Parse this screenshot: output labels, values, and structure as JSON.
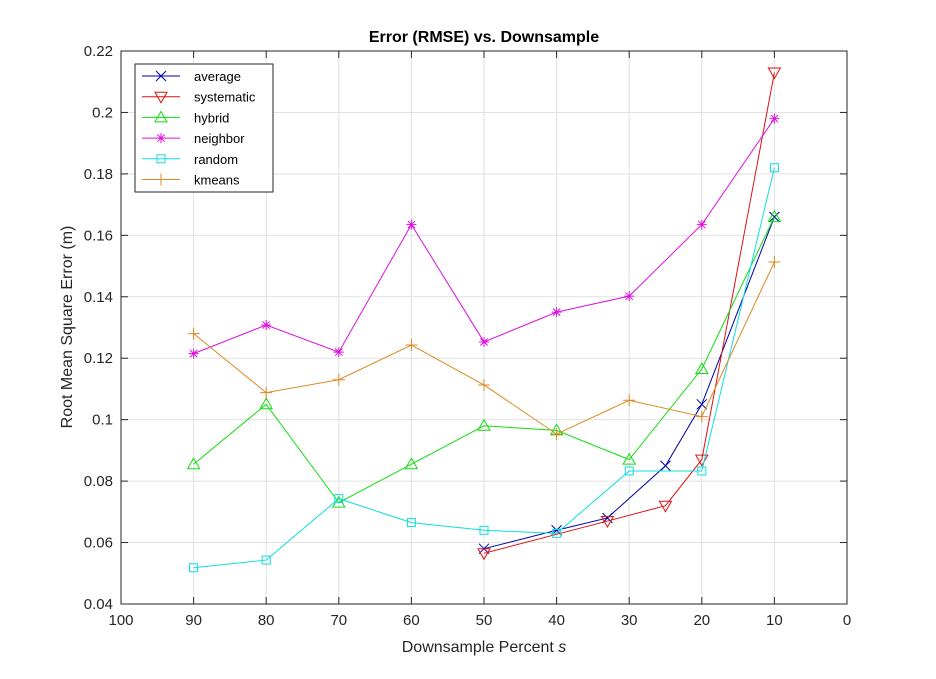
{
  "chart_data": {
    "type": "line",
    "title": "Error (RMSE) vs. Downsample",
    "xlabel": "Downsample Percent ",
    "xlabel_var": "s",
    "ylabel": "Root Mean Square Error (m)",
    "xlim": [
      0,
      100
    ],
    "x_reversed": true,
    "ylim": [
      0.04,
      0.22
    ],
    "xticks": [
      100,
      90,
      80,
      70,
      60,
      50,
      40,
      30,
      20,
      10,
      0
    ],
    "yticks": [
      0.04,
      0.06,
      0.08,
      0.1,
      0.12,
      0.14,
      0.16,
      0.18,
      0.2,
      0.22
    ],
    "ytick_labels": [
      "0.04",
      "0.06",
      "0.08",
      "0.1",
      "0.12",
      "0.14",
      "0.16",
      "0.18",
      "0.2",
      "0.22"
    ],
    "grid": true,
    "legend_position": "top-left",
    "series": [
      {
        "name": "average",
        "color": "#0000aa",
        "marker": "x",
        "x": [
          50,
          40,
          33,
          25,
          20,
          10
        ],
        "y": [
          0.058,
          0.064,
          0.068,
          0.085,
          0.105,
          0.166
        ]
      },
      {
        "name": "systematic",
        "color": "#dd1111",
        "marker": "triangle-down",
        "x": [
          50,
          33,
          25,
          20,
          10
        ],
        "y": [
          0.0565,
          0.067,
          0.072,
          0.087,
          0.213
        ]
      },
      {
        "name": "hybrid",
        "color": "#11dd11",
        "marker": "triangle-up",
        "x": [
          90,
          80,
          70,
          60,
          50,
          40,
          30,
          20,
          10
        ],
        "y": [
          0.0855,
          0.105,
          0.073,
          0.0855,
          0.098,
          0.0965,
          0.087,
          0.1165,
          0.166
        ]
      },
      {
        "name": "neighbor",
        "color": "#dd11dd",
        "marker": "asterisk",
        "x": [
          90,
          80,
          70,
          60,
          50,
          40,
          30,
          20,
          10
        ],
        "y": [
          0.1215,
          0.1308,
          0.122,
          0.1635,
          0.1253,
          0.135,
          0.1402,
          0.1635,
          0.198
        ]
      },
      {
        "name": "random",
        "color": "#11dddd",
        "marker": "square",
        "x": [
          90,
          80,
          70,
          60,
          50,
          40,
          30,
          20,
          10
        ],
        "y": [
          0.0518,
          0.0543,
          0.0743,
          0.0665,
          0.064,
          0.063,
          0.0833,
          0.0833,
          0.182
        ]
      },
      {
        "name": "kmeans",
        "color": "#dd8822",
        "marker": "plus",
        "x": [
          90,
          80,
          70,
          60,
          50,
          40,
          30,
          20,
          10
        ],
        "y": [
          0.128,
          0.1088,
          0.113,
          0.1243,
          0.1113,
          0.0953,
          0.1063,
          0.101,
          0.1513
        ]
      }
    ]
  }
}
